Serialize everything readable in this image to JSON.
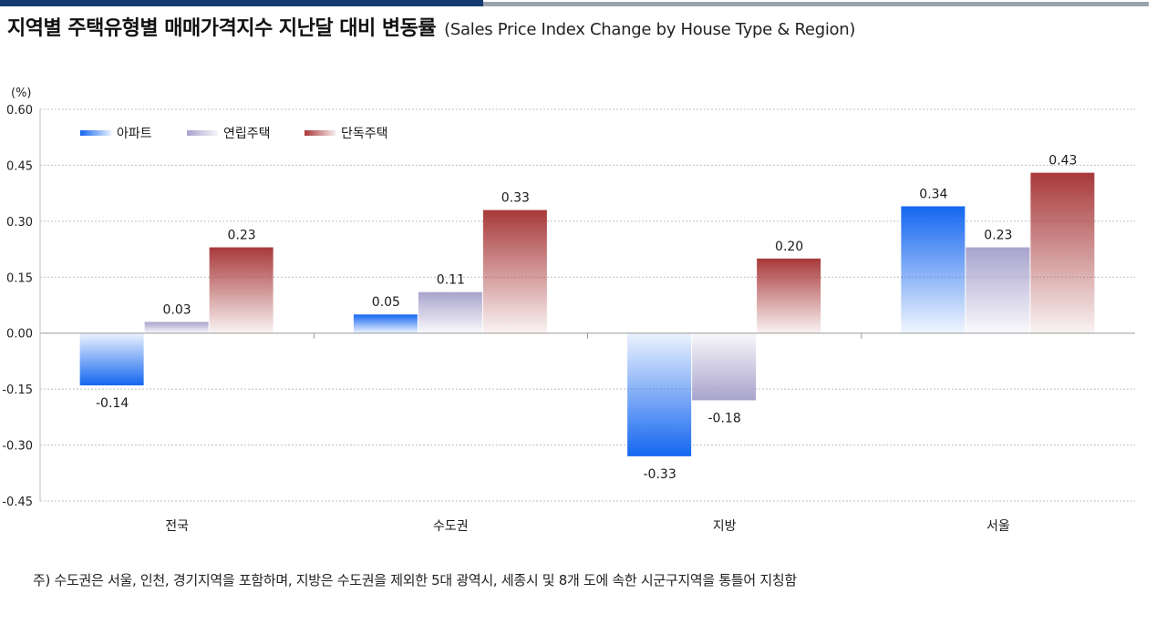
{
  "title": "지역별 주택유형별 매매가격지수 지난달 대비 변동률",
  "subtitle": "(Sales Price Index Change by House Type & Region)",
  "footnote": "주) 수도권은 서울, 인천, 경기지역을 포함하며, 지방은 수도권을 제외한 5대 광역시, 세종시 및 8개 도에 속한 시군구지역을 통틀어 지칭함",
  "colors": {
    "apartment": "#1466f0",
    "row_house": "#a8a3cc",
    "detached": "#a8393a",
    "header_bar": "#143c6e",
    "header_line": "#9aa3ad"
  },
  "chart_data": {
    "type": "bar",
    "ylabel": "(%)",
    "ylim": [
      -0.45,
      0.6
    ],
    "yticks": [
      "0.60",
      "0.45",
      "0.30",
      "0.15",
      "0.00",
      "-0.15",
      "-0.30",
      "-0.45"
    ],
    "ytick_values": [
      0.6,
      0.45,
      0.3,
      0.15,
      0.0,
      -0.15,
      -0.3,
      -0.45
    ],
    "grid": true,
    "legend_position": "top-left",
    "categories": [
      "전국",
      "수도권",
      "지방",
      "서울"
    ],
    "series": [
      {
        "name": "아파트",
        "values": [
          -0.14,
          0.05,
          -0.33,
          0.34
        ],
        "labels": [
          "-0.14",
          "0.05",
          "-0.33",
          "0.34"
        ]
      },
      {
        "name": "연립주택",
        "values": [
          0.03,
          0.11,
          -0.18,
          0.23
        ],
        "labels": [
          "0.03",
          "0.11",
          "-0.18",
          "0.23"
        ]
      },
      {
        "name": "단독주택",
        "values": [
          0.23,
          0.33,
          0.2,
          0.43
        ],
        "labels": [
          "0.23",
          "0.33",
          "0.20",
          "0.43"
        ]
      }
    ]
  }
}
